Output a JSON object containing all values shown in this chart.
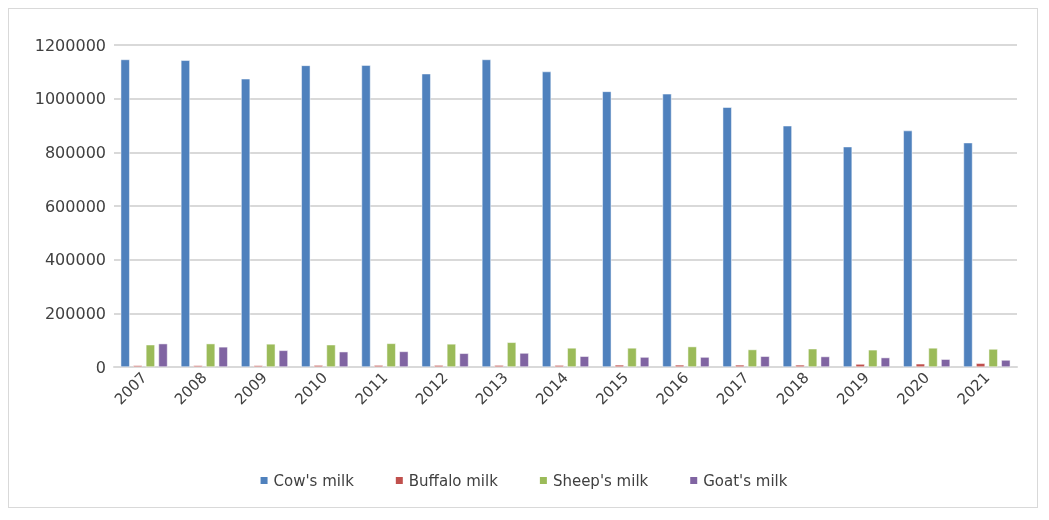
{
  "chart_data": {
    "type": "bar",
    "categories": [
      "2007",
      "2008",
      "2009",
      "2010",
      "2011",
      "2012",
      "2013",
      "2014",
      "2015",
      "2016",
      "2017",
      "2018",
      "2019",
      "2020",
      "2021"
    ],
    "series": [
      {
        "name": "Cow's milk",
        "color": "#4f81bd",
        "values": [
          1146000,
          1143000,
          1074000,
          1124000,
          1125000,
          1093000,
          1146000,
          1101000,
          1027000,
          1018000,
          968000,
          899000,
          821000,
          881000,
          836000
        ]
      },
      {
        "name": "Buffalo milk",
        "color": "#c0504d",
        "values": [
          6000,
          6000,
          6000,
          7000,
          7000,
          7000,
          7000,
          7000,
          8000,
          8000,
          8000,
          8000,
          11000,
          12000,
          14000
        ]
      },
      {
        "name": "Sheep's milk",
        "color": "#9bbb59",
        "values": [
          83000,
          87000,
          86000,
          83000,
          88000,
          86000,
          92000,
          71000,
          71000,
          76000,
          65000,
          68000,
          64000,
          71000,
          67000
        ]
      },
      {
        "name": "Goat's milk",
        "color": "#8064a2",
        "values": [
          87000,
          75000,
          62000,
          57000,
          58000,
          51000,
          52000,
          40000,
          37000,
          37000,
          40000,
          39000,
          35000,
          29000,
          26000
        ]
      }
    ],
    "ylim": [
      0,
      1200000
    ],
    "yticks": [
      0,
      200000,
      400000,
      600000,
      800000,
      1000000,
      1200000
    ],
    "grid": "y",
    "legend": "bottom"
  }
}
